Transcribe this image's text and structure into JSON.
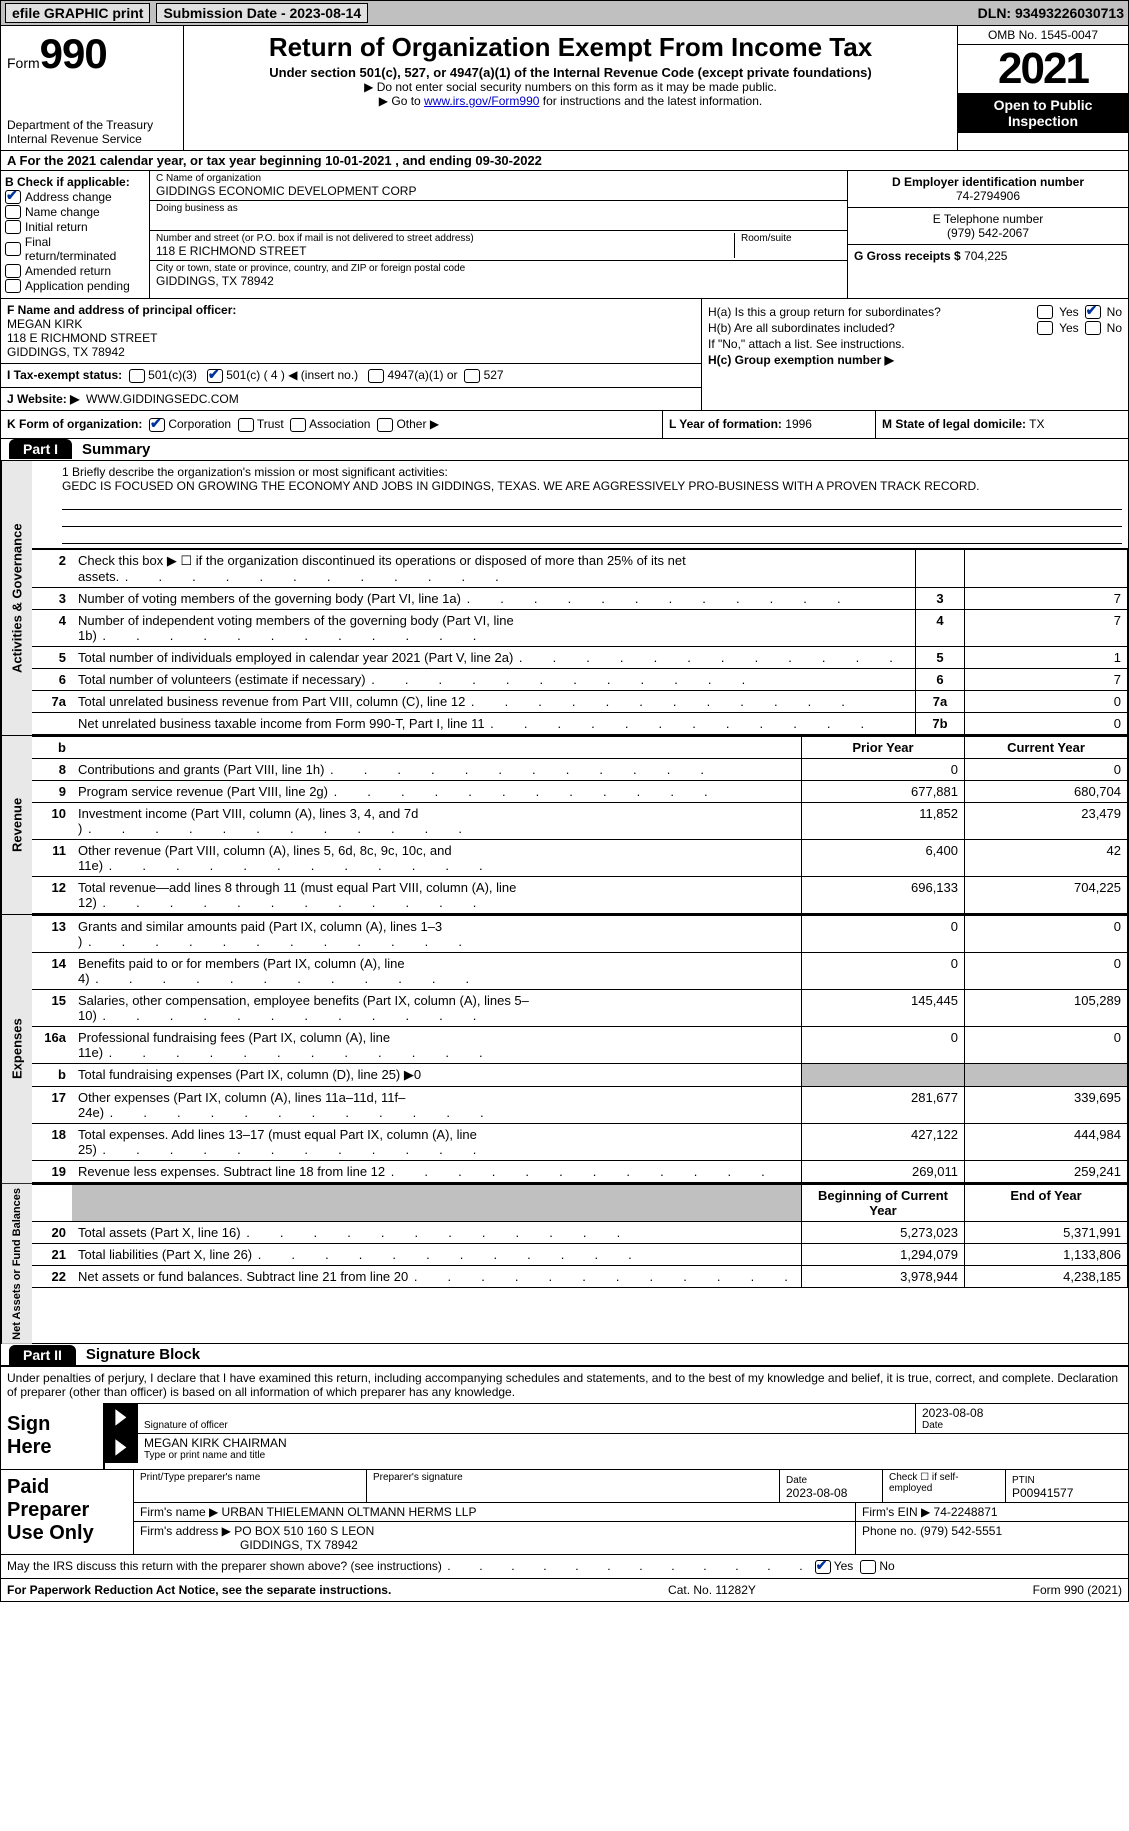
{
  "colors": {
    "link": "#0000cc",
    "accent_check": "#003399",
    "shade": "#c0c0c0",
    "side_bg": "#e8e8e8"
  },
  "topbar": {
    "efile": "efile GRAPHIC print",
    "sub_label": "Submission Date - 2023-08-14",
    "dln": "DLN: 93493226030713"
  },
  "header": {
    "form_word": "Form",
    "form_num": "990",
    "dept": "Department of the Treasury",
    "irs": "Internal Revenue Service",
    "title": "Return of Organization Exempt From Income Tax",
    "sub1": "Under section 501(c), 527, or 4947(a)(1) of the Internal Revenue Code (except private foundations)",
    "sub2a": "▶ Do not enter social security numbers on this form as it may be made public.",
    "sub2b_pre": "▶ Go to ",
    "sub2b_link": "www.irs.gov/Form990",
    "sub2b_post": " for instructions and the latest information.",
    "omb": "OMB No. 1545-0047",
    "year": "2021",
    "open": "Open to Public Inspection"
  },
  "lineA": "A For the 2021 calendar year, or tax year beginning 10-01-2021    , and ending 09-30-2022",
  "boxB": {
    "label": "B Check if applicable:",
    "addr_change": "Address change",
    "name_change": "Name change",
    "initial": "Initial return",
    "final": "Final return/terminated",
    "amended": "Amended return",
    "app_pending": "Application pending"
  },
  "boxC": {
    "name_lbl": "C Name of organization",
    "name": "GIDDINGS ECONOMIC DEVELOPMENT CORP",
    "dba_lbl": "Doing business as",
    "street_lbl": "Number and street (or P.O. box if mail is not delivered to street address)",
    "room_lbl": "Room/suite",
    "street": "118 E RICHMOND STREET",
    "city_lbl": "City or town, state or province, country, and ZIP or foreign postal code",
    "city": "GIDDINGS, TX  78942"
  },
  "boxDE": {
    "ein_lbl": "D Employer identification number",
    "ein": "74-2794906",
    "tel_lbl": "E Telephone number",
    "tel": "(979) 542-2067",
    "gross_lbl": "G Gross receipts $",
    "gross": "704,225"
  },
  "boxF": {
    "lbl": "F  Name and address of principal officer:",
    "name": "MEGAN KIRK",
    "street": "118 E RICHMOND STREET",
    "city": "GIDDINGS, TX  78942"
  },
  "boxH": {
    "a": "H(a)  Is this a group return for subordinates?",
    "b": "H(b)  Are all subordinates included?",
    "b_note": "If \"No,\" attach a list. See instructions.",
    "c": "H(c)  Group exemption number ▶",
    "yes": "Yes",
    "no": "No"
  },
  "boxI": {
    "lbl": "I    Tax-exempt status:",
    "c3": "501(c)(3)",
    "c_other": "501(c) ( 4 ) ◀ (insert no.)",
    "a1": "4947(a)(1) or",
    "s527": "527"
  },
  "boxJ": {
    "lbl": "J   Website: ▶",
    "val": "WWW.GIDDINGSEDC.COM"
  },
  "boxK": {
    "lbl": "K Form of organization:",
    "corp": "Corporation",
    "trust": "Trust",
    "assoc": "Association",
    "other": "Other ▶"
  },
  "boxL": {
    "lbl": "L Year of formation:",
    "val": "1996"
  },
  "boxM": {
    "lbl": "M State of legal domicile:",
    "val": "TX"
  },
  "parts": {
    "p1_tab": "Part I",
    "p1_title": "Summary",
    "p2_tab": "Part II",
    "p2_title": "Signature Block"
  },
  "side": {
    "act": "Activities & Governance",
    "rev": "Revenue",
    "exp": "Expenses",
    "net": "Net Assets or Fund Balances"
  },
  "mission": {
    "lbl": "1   Briefly describe the organization's mission or most significant activities:",
    "text": "GEDC IS FOCUSED ON GROWING THE ECONOMY AND JOBS IN GIDDINGS, TEXAS. WE ARE AGGRESSIVELY PRO-BUSINESS WITH A PROVEN TRACK RECORD."
  },
  "lines_act": [
    {
      "n": "2",
      "d": "Check this box ▶ ☐ if the organization discontinued its operations or disposed of more than 25% of its net assets.",
      "num": "",
      "v": ""
    },
    {
      "n": "3",
      "d": "Number of voting members of the governing body (Part VI, line 1a)",
      "num": "3",
      "v": "7"
    },
    {
      "n": "4",
      "d": "Number of independent voting members of the governing body (Part VI, line 1b)",
      "num": "4",
      "v": "7"
    },
    {
      "n": "5",
      "d": "Total number of individuals employed in calendar year 2021 (Part V, line 2a)",
      "num": "5",
      "v": "1"
    },
    {
      "n": "6",
      "d": "Total number of volunteers (estimate if necessary)",
      "num": "6",
      "v": "7"
    },
    {
      "n": "7a",
      "d": "Total unrelated business revenue from Part VIII, column (C), line 12",
      "num": "7a",
      "v": "0"
    },
    {
      "n": "",
      "d": "Net unrelated business taxable income from Form 990-T, Part I, line 11",
      "num": "7b",
      "v": "0"
    }
  ],
  "rev_hdr": {
    "prior": "Prior Year",
    "curr": "Current Year"
  },
  "lines_rev": [
    {
      "n": "8",
      "d": "Contributions and grants (Part VIII, line 1h)",
      "p": "0",
      "c": "0"
    },
    {
      "n": "9",
      "d": "Program service revenue (Part VIII, line 2g)",
      "p": "677,881",
      "c": "680,704"
    },
    {
      "n": "10",
      "d": "Investment income (Part VIII, column (A), lines 3, 4, and 7d )",
      "p": "11,852",
      "c": "23,479"
    },
    {
      "n": "11",
      "d": "Other revenue (Part VIII, column (A), lines 5, 6d, 8c, 9c, 10c, and 11e)",
      "p": "6,400",
      "c": "42"
    },
    {
      "n": "12",
      "d": "Total revenue—add lines 8 through 11 (must equal Part VIII, column (A), line 12)",
      "p": "696,133",
      "c": "704,225"
    }
  ],
  "lines_exp": [
    {
      "n": "13",
      "d": "Grants and similar amounts paid (Part IX, column (A), lines 1–3 )",
      "p": "0",
      "c": "0"
    },
    {
      "n": "14",
      "d": "Benefits paid to or for members (Part IX, column (A), line 4)",
      "p": "0",
      "c": "0"
    },
    {
      "n": "15",
      "d": "Salaries, other compensation, employee benefits (Part IX, column (A), lines 5–10)",
      "p": "145,445",
      "c": "105,289"
    },
    {
      "n": "16a",
      "d": "Professional fundraising fees (Part IX, column (A), line 11e)",
      "p": "0",
      "c": "0"
    },
    {
      "n": "b",
      "d": "Total fundraising expenses (Part IX, column (D), line 25) ▶0",
      "p": "",
      "c": "",
      "shade": true
    },
    {
      "n": "17",
      "d": "Other expenses (Part IX, column (A), lines 11a–11d, 11f–24e)",
      "p": "281,677",
      "c": "339,695"
    },
    {
      "n": "18",
      "d": "Total expenses. Add lines 13–17 (must equal Part IX, column (A), line 25)",
      "p": "427,122",
      "c": "444,984"
    },
    {
      "n": "19",
      "d": "Revenue less expenses. Subtract line 18 from line 12",
      "p": "269,011",
      "c": "259,241"
    }
  ],
  "net_hdr": {
    "beg": "Beginning of Current Year",
    "end": "End of Year"
  },
  "lines_net": [
    {
      "n": "20",
      "d": "Total assets (Part X, line 16)",
      "p": "5,273,023",
      "c": "5,371,991"
    },
    {
      "n": "21",
      "d": "Total liabilities (Part X, line 26)",
      "p": "1,294,079",
      "c": "1,133,806"
    },
    {
      "n": "22",
      "d": "Net assets or fund balances. Subtract line 21 from line 20",
      "p": "3,978,944",
      "c": "4,238,185"
    }
  ],
  "sig": {
    "intro": "Under penalties of perjury, I declare that I have examined this return, including accompanying schedules and statements, and to the best of my knowledge and belief, it is true, correct, and complete. Declaration of preparer (other than officer) is based on all information of which preparer has any knowledge.",
    "sign_here": "Sign Here",
    "sig_officer_lbl": "Signature of officer",
    "date_val": "2023-08-08",
    "date_lbl": "Date",
    "officer_name": "MEGAN KIRK  CHAIRMAN",
    "officer_lbl": "Type or print name and title"
  },
  "prep": {
    "title": "Paid Preparer Use Only",
    "name_lbl": "Print/Type preparer's name",
    "sig_lbl": "Preparer's signature",
    "date_lbl": "Date",
    "date_val": "2023-08-08",
    "check_lbl": "Check ☐ if self-employed",
    "ptin_lbl": "PTIN",
    "ptin": "P00941577",
    "firm_name_lbl": "Firm's name    ▶",
    "firm_name": "URBAN THIELEMANN OLTMANN HERMS LLP",
    "firm_ein_lbl": "Firm's EIN ▶",
    "firm_ein": "74-2248871",
    "firm_addr_lbl": "Firm's address ▶",
    "firm_addr1": "PO BOX 510 160 S LEON",
    "firm_addr2": "GIDDINGS, TX  78942",
    "phone_lbl": "Phone no.",
    "phone": "(979) 542-5551"
  },
  "discuss": {
    "q": "May the IRS discuss this return with the preparer shown above? (see instructions)",
    "yes": "Yes",
    "no": "No"
  },
  "footer": {
    "left": "For Paperwork Reduction Act Notice, see the separate instructions.",
    "mid": "Cat. No. 11282Y",
    "right": "Form 990 (2021)"
  }
}
